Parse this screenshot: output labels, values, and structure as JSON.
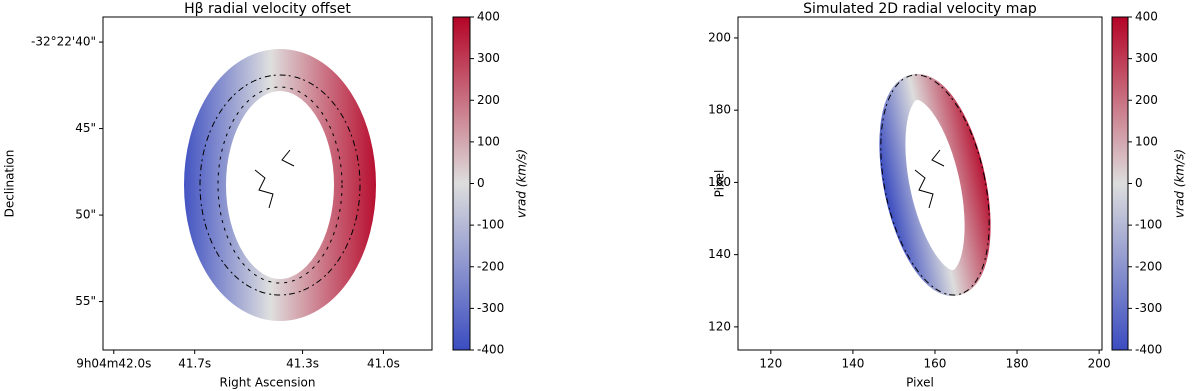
{
  "chart_data": [
    {
      "type": "image",
      "title": "Hβ radial velocity offset",
      "x_label": "Right Ascension",
      "y_label": "Declination",
      "xlim": [
        42.04,
        40.82
      ],
      "xticks": [
        {
          "value": 42.0,
          "label": "9h04m42.0s"
        },
        {
          "value": 41.7,
          "label": "41.7s"
        },
        {
          "value": 41.3,
          "label": "41.3s"
        },
        {
          "value": 41.0,
          "label": "41.0s"
        }
      ],
      "ylim": [
        57.8,
        38.55
      ],
      "yticks": [
        {
          "value": 40,
          "label": "-32°22'40\""
        },
        {
          "value": 45,
          "label": "45\""
        },
        {
          "value": 50,
          "label": "50\""
        },
        {
          "value": 55,
          "label": "55\""
        }
      ],
      "colorbar": {
        "label": "vrad (km/s)",
        "lim": [
          -400,
          400
        ],
        "ticks": [
          -400,
          -300,
          -200,
          -100,
          0,
          100,
          200,
          300,
          400
        ],
        "colors": [
          "#3b4cc0",
          "#dddddd",
          "#b40426"
        ]
      }
    },
    {
      "type": "image",
      "title": "Simulated 2D radial velocity map",
      "x_label": "Pixel",
      "y_label": "Pixel",
      "xlim": [
        112,
        200.7
      ],
      "xticks": [
        120,
        140,
        160,
        180,
        200
      ],
      "ylim": [
        113.6,
        205.8
      ],
      "yticks": [
        120,
        140,
        160,
        180,
        200
      ],
      "colorbar": {
        "label": "vrad (km/s)",
        "lim": [
          -400,
          400
        ],
        "ticks": [
          -400,
          -300,
          -200,
          -100,
          0,
          100,
          200,
          300,
          400
        ],
        "colors": [
          "#3b4cc0",
          "#dddddd",
          "#b40426"
        ]
      }
    }
  ]
}
